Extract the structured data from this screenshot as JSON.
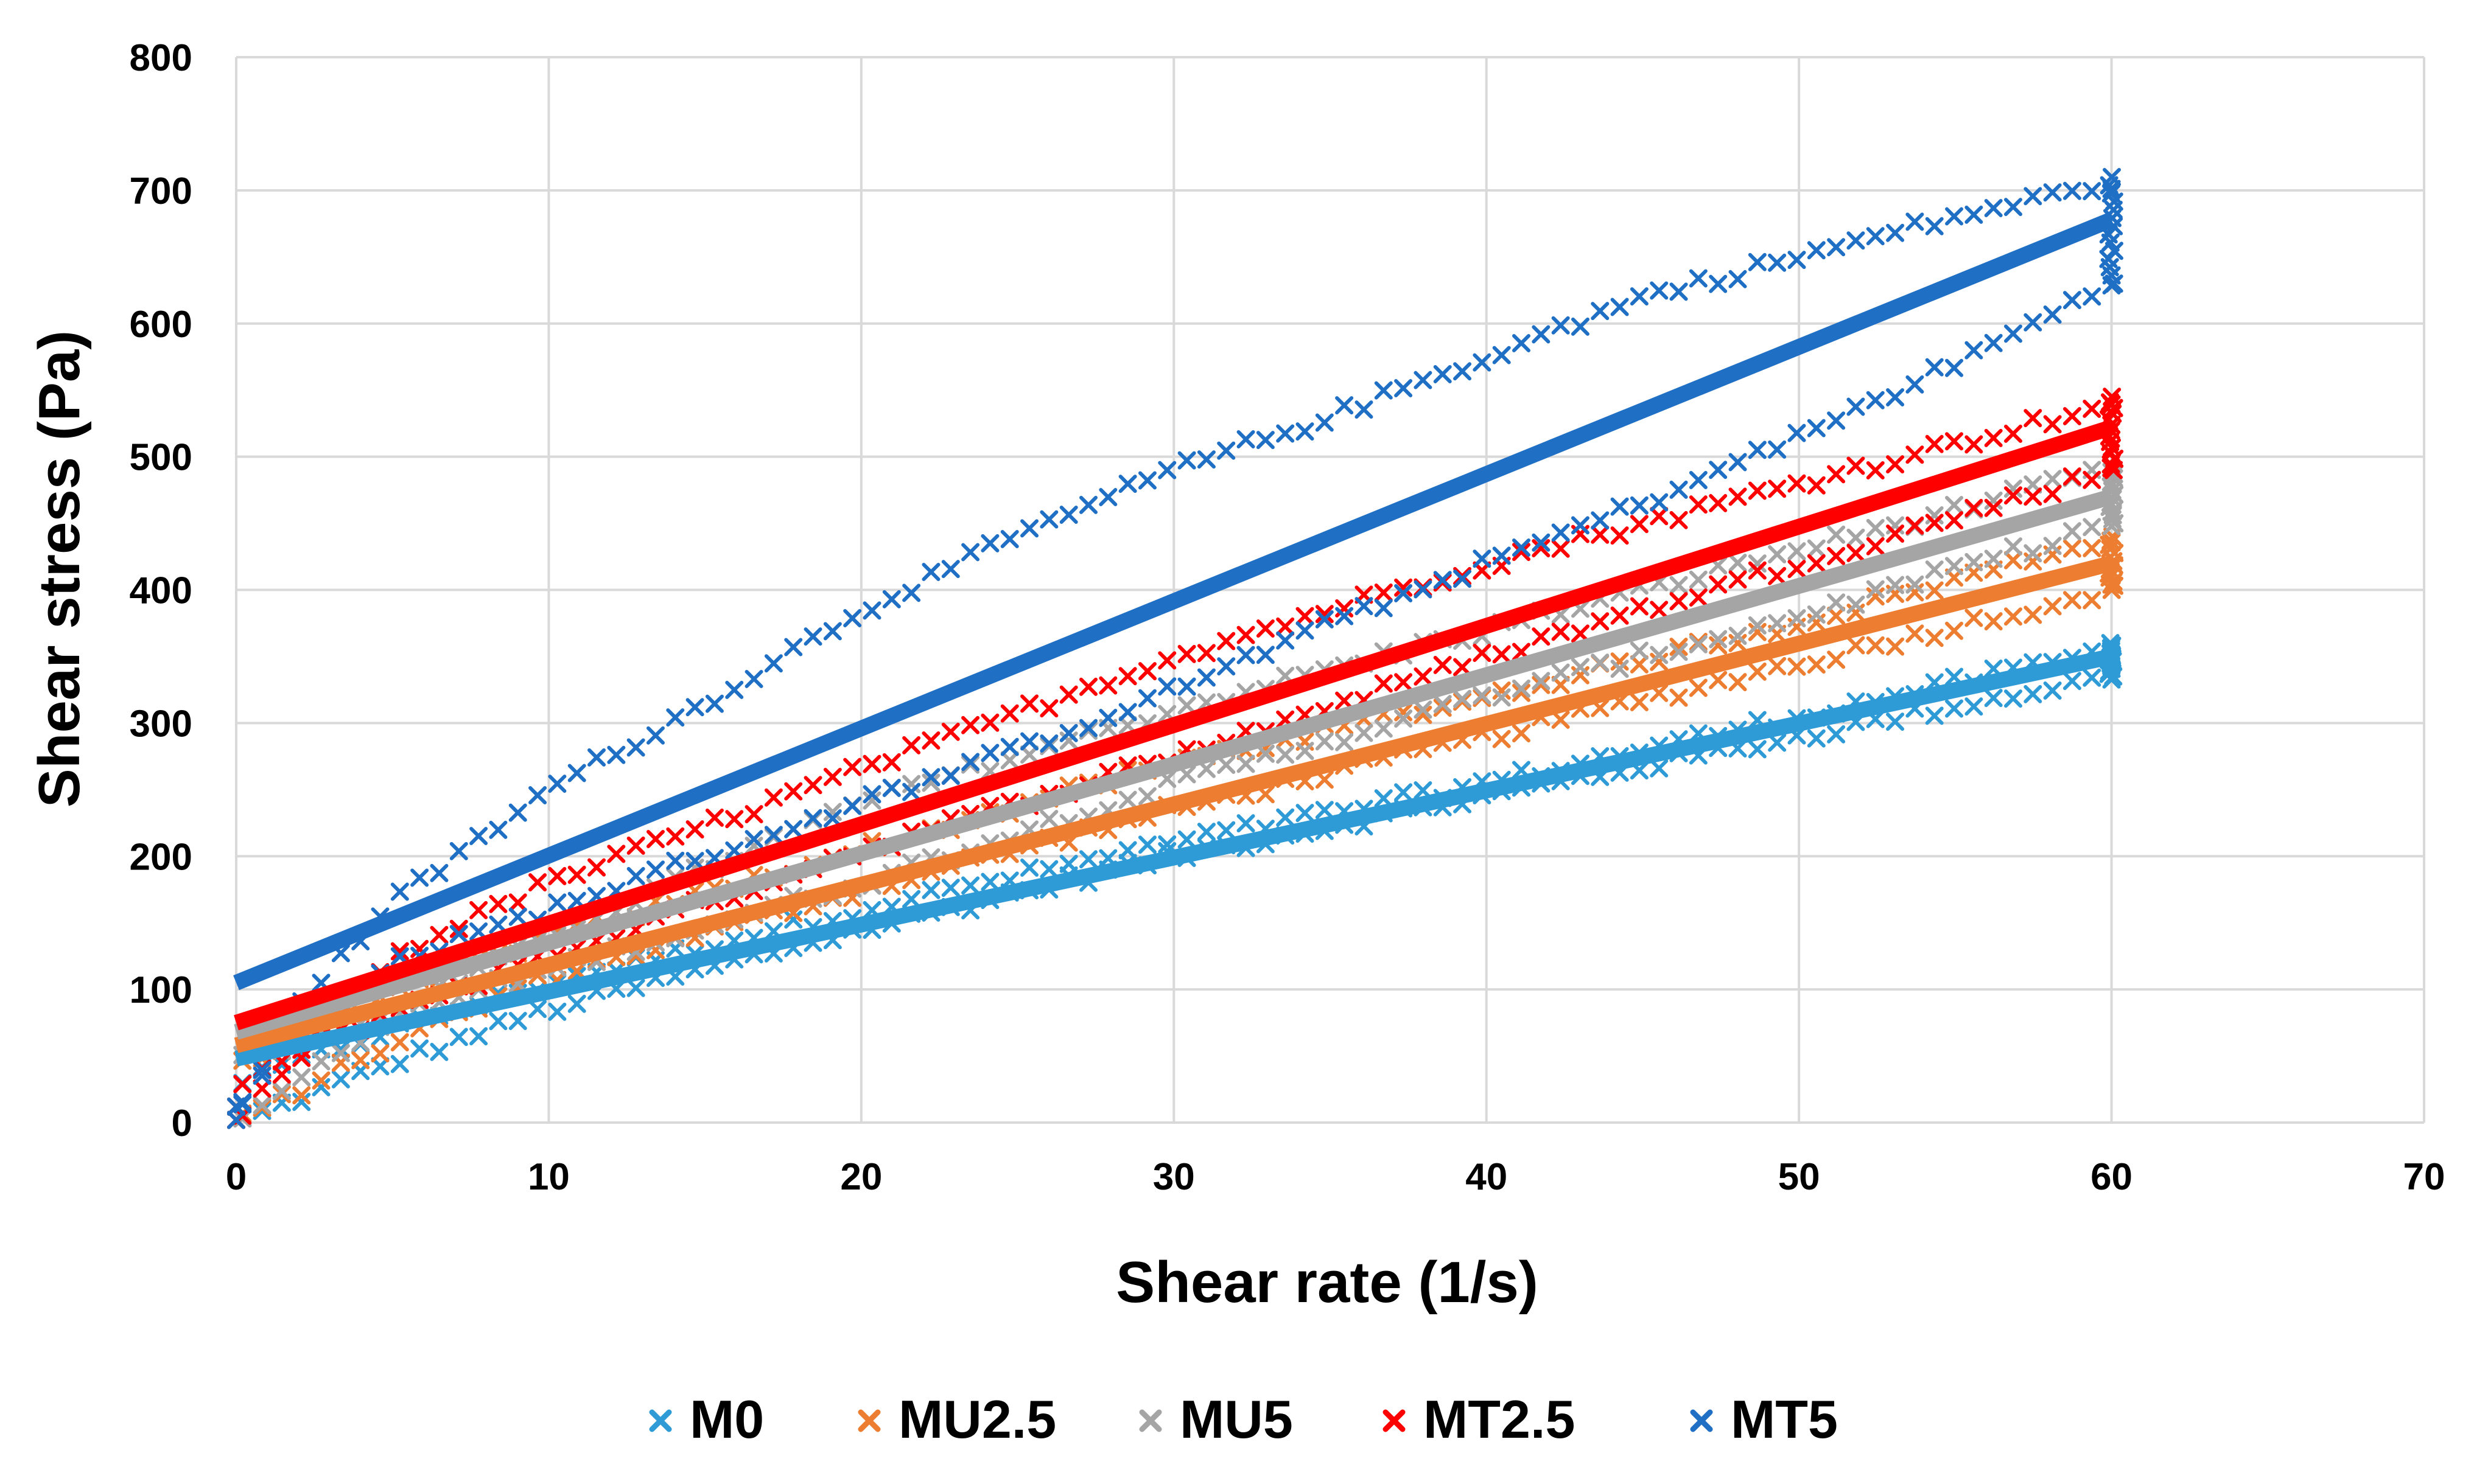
{
  "chart_data": {
    "type": "scatter",
    "title": "",
    "xlabel": "Shear rate (1/s)",
    "ylabel": "Shear stress (Pa)",
    "xlim": [
      0,
      70
    ],
    "ylim": [
      0,
      800
    ],
    "xticks": [
      0,
      10,
      20,
      30,
      40,
      50,
      60,
      70
    ],
    "yticks": [
      0,
      100,
      200,
      300,
      400,
      500,
      600,
      700,
      800
    ],
    "grid": true,
    "legend_position": "bottom",
    "series": [
      {
        "name": "M0",
        "color": "#2E9BD6",
        "marker": "x",
        "up_curve": [
          [
            0,
            0
          ],
          [
            5,
            45
          ],
          [
            10,
            85
          ],
          [
            20,
            145
          ],
          [
            30,
            200
          ],
          [
            40,
            245
          ],
          [
            50,
            290
          ],
          [
            60,
            335
          ]
        ],
        "down_curve": [
          [
            60,
            355
          ],
          [
            50,
            305
          ],
          [
            40,
            255
          ],
          [
            30,
            210
          ],
          [
            20,
            160
          ],
          [
            10,
            105
          ],
          [
            5,
            70
          ],
          [
            0,
            30
          ]
        ],
        "hold_range_at_max_rate": [
          335,
          360
        ],
        "trendline": [
          [
            0,
            48
          ],
          [
            60,
            350
          ]
        ]
      },
      {
        "name": "MU2.5",
        "color": "#ED7D31",
        "marker": "x",
        "up_curve": [
          [
            0,
            0
          ],
          [
            5,
            60
          ],
          [
            10,
            110
          ],
          [
            20,
            175
          ],
          [
            30,
            235
          ],
          [
            40,
            290
          ],
          [
            50,
            345
          ],
          [
            60,
            400
          ]
        ],
        "down_curve": [
          [
            60,
            440
          ],
          [
            50,
            375
          ],
          [
            40,
            320
          ],
          [
            30,
            270
          ],
          [
            20,
            205
          ],
          [
            10,
            140
          ],
          [
            5,
            95
          ],
          [
            0,
            40
          ]
        ],
        "hold_range_at_max_rate": [
          400,
          440
        ],
        "trendline": [
          [
            0,
            58
          ],
          [
            60,
            420
          ]
        ]
      },
      {
        "name": "MU5",
        "color": "#A5A5A5",
        "marker": "x",
        "up_curve": [
          [
            0,
            0
          ],
          [
            5,
            80
          ],
          [
            10,
            140
          ],
          [
            20,
            240
          ],
          [
            30,
            310
          ],
          [
            40,
            370
          ],
          [
            50,
            430
          ],
          [
            60,
            490
          ]
        ],
        "down_curve": [
          [
            60,
            450
          ],
          [
            50,
            380
          ],
          [
            40,
            320
          ],
          [
            30,
            255
          ],
          [
            20,
            180
          ],
          [
            10,
            115
          ],
          [
            5,
            80
          ],
          [
            0,
            50
          ]
        ],
        "hold_range_at_max_rate": [
          450,
          490
        ],
        "trendline": [
          [
            0,
            68
          ],
          [
            60,
            470
          ]
        ]
      },
      {
        "name": "MT2.5",
        "color": "#FF0000",
        "marker": "x",
        "up_curve": [
          [
            0,
            0
          ],
          [
            5,
            125
          ],
          [
            10,
            180
          ],
          [
            20,
            265
          ],
          [
            30,
            350
          ],
          [
            40,
            420
          ],
          [
            50,
            480
          ],
          [
            60,
            540
          ]
        ],
        "down_curve": [
          [
            60,
            490
          ],
          [
            50,
            420
          ],
          [
            40,
            350
          ],
          [
            30,
            275
          ],
          [
            20,
            205
          ],
          [
            10,
            125
          ],
          [
            5,
            85
          ],
          [
            0,
            30
          ]
        ],
        "hold_range_at_max_rate": [
          490,
          545
        ],
        "trendline": [
          [
            0,
            75
          ],
          [
            60,
            522
          ]
        ]
      },
      {
        "name": "MT5",
        "color": "#1F6FC5",
        "marker": "x",
        "up_curve": [
          [
            0,
            0
          ],
          [
            2,
            90
          ],
          [
            5,
            165
          ],
          [
            10,
            250
          ],
          [
            15,
            315
          ],
          [
            20,
            385
          ],
          [
            25,
            440
          ],
          [
            30,
            490
          ],
          [
            35,
            530
          ],
          [
            40,
            575
          ],
          [
            45,
            620
          ],
          [
            50,
            650
          ],
          [
            55,
            680
          ],
          [
            60,
            705
          ]
        ],
        "down_curve": [
          [
            60,
            630
          ],
          [
            55,
            570
          ],
          [
            50,
            515
          ],
          [
            45,
            465
          ],
          [
            40,
            420
          ],
          [
            35,
            375
          ],
          [
            30,
            325
          ],
          [
            25,
            280
          ],
          [
            20,
            240
          ],
          [
            15,
            200
          ],
          [
            10,
            160
          ],
          [
            5,
            120
          ],
          [
            2,
            75
          ],
          [
            0,
            10
          ]
        ],
        "hold_range_at_max_rate": [
          630,
          710
        ],
        "trendline": [
          [
            0,
            105
          ],
          [
            60,
            678
          ]
        ]
      }
    ]
  }
}
